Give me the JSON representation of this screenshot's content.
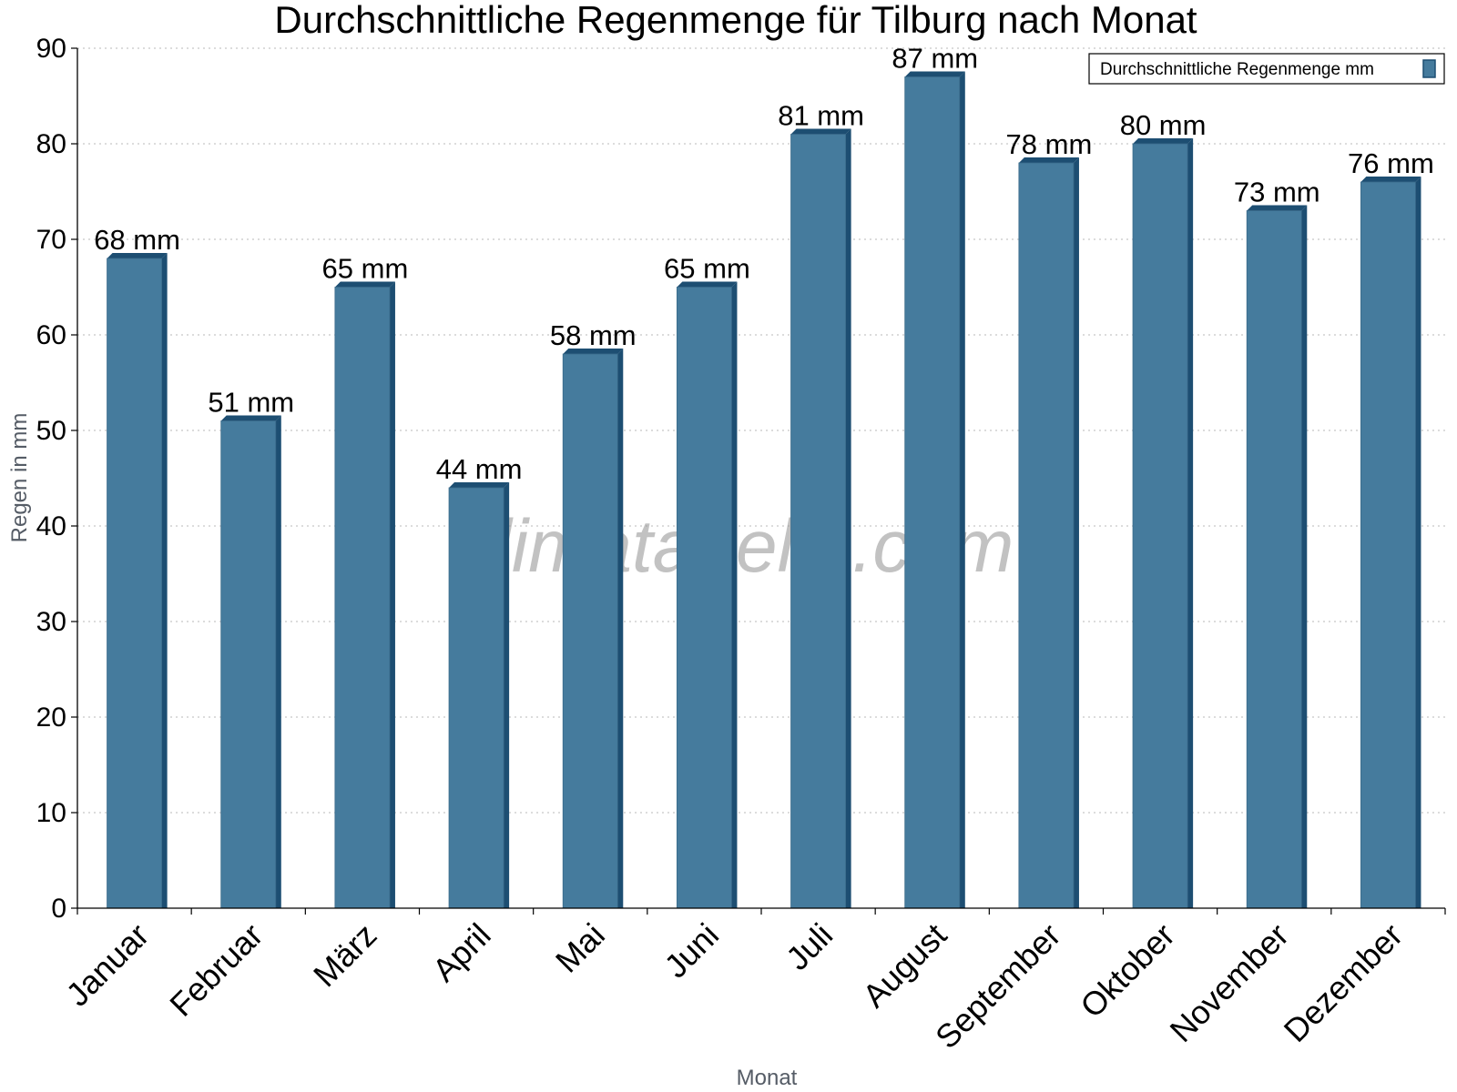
{
  "chart_data": {
    "type": "bar",
    "title": "Durchschnittliche Regenmenge für Tilburg nach Monat",
    "xlabel": "Monat",
    "ylabel": "Regen in mm",
    "ylim": [
      0,
      90
    ],
    "yticks": [
      0,
      10,
      20,
      30,
      40,
      50,
      60,
      70,
      80,
      90
    ],
    "grid": true,
    "legend_position": "top-right",
    "categories": [
      "Januar",
      "Februar",
      "März",
      "April",
      "Mai",
      "Juni",
      "Juli",
      "August",
      "September",
      "Oktober",
      "November",
      "Dezember"
    ],
    "series": [
      {
        "name": "Durchschnittliche Regenmenge mm",
        "values": [
          68,
          51,
          65,
          44,
          58,
          65,
          81,
          87,
          78,
          80,
          73,
          76
        ],
        "labels": [
          "68 mm",
          "51 mm",
          "65 mm",
          "44 mm",
          "58 mm",
          "65 mm",
          "81 mm",
          "87 mm",
          "78 mm",
          "80 mm",
          "73 mm",
          "76 mm"
        ],
        "color": "#457b9d",
        "side_color": "#1d4e72"
      }
    ]
  },
  "watermark": "klimatabelle.com"
}
